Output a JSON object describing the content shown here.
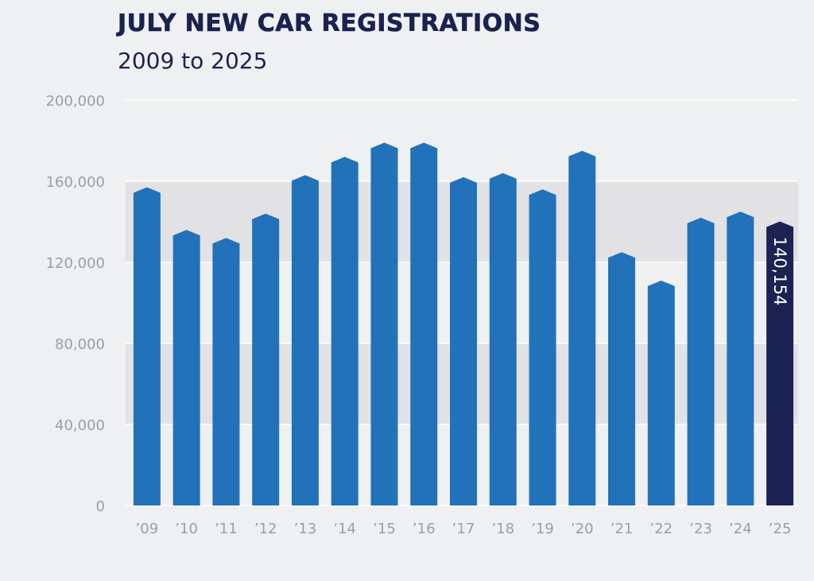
{
  "header": {
    "title": "JULY NEW CAR REGISTRATIONS",
    "subtitle": "2009 to 2025"
  },
  "colors": {
    "background": "#eff0f2",
    "band": "#e2e1e4",
    "bar": "#2272ba",
    "highlight_bar": "#1c2353",
    "gridline": "#ffffff",
    "tick_text": "#9b9ea6",
    "title_text": "#1a2250"
  },
  "chart_data": {
    "type": "bar",
    "title": "JULY NEW CAR REGISTRATIONS",
    "subtitle": "2009 to 2025",
    "categories": [
      "’09",
      "’10",
      "’11",
      "’12",
      "’13",
      "’14",
      "’15",
      "’16",
      "’17",
      "’18",
      "’19",
      "’20",
      "’21",
      "’22",
      "’23",
      "’24",
      "’25"
    ],
    "values": [
      157000,
      136000,
      132000,
      144000,
      163000,
      172000,
      179000,
      179000,
      162000,
      164000,
      156000,
      175000,
      125000,
      111000,
      142000,
      145000,
      140154
    ],
    "ylim": [
      0,
      200000
    ],
    "yticks": [
      0,
      40000,
      80000,
      120000,
      160000,
      200000
    ],
    "ytick_labels": [
      "0",
      "40,000",
      "80,000",
      "120,000",
      "160,000",
      "200,000"
    ],
    "grid": true,
    "highlight_index": 16,
    "data_labels": [
      {
        "index": 16,
        "text": "140,154"
      }
    ]
  }
}
